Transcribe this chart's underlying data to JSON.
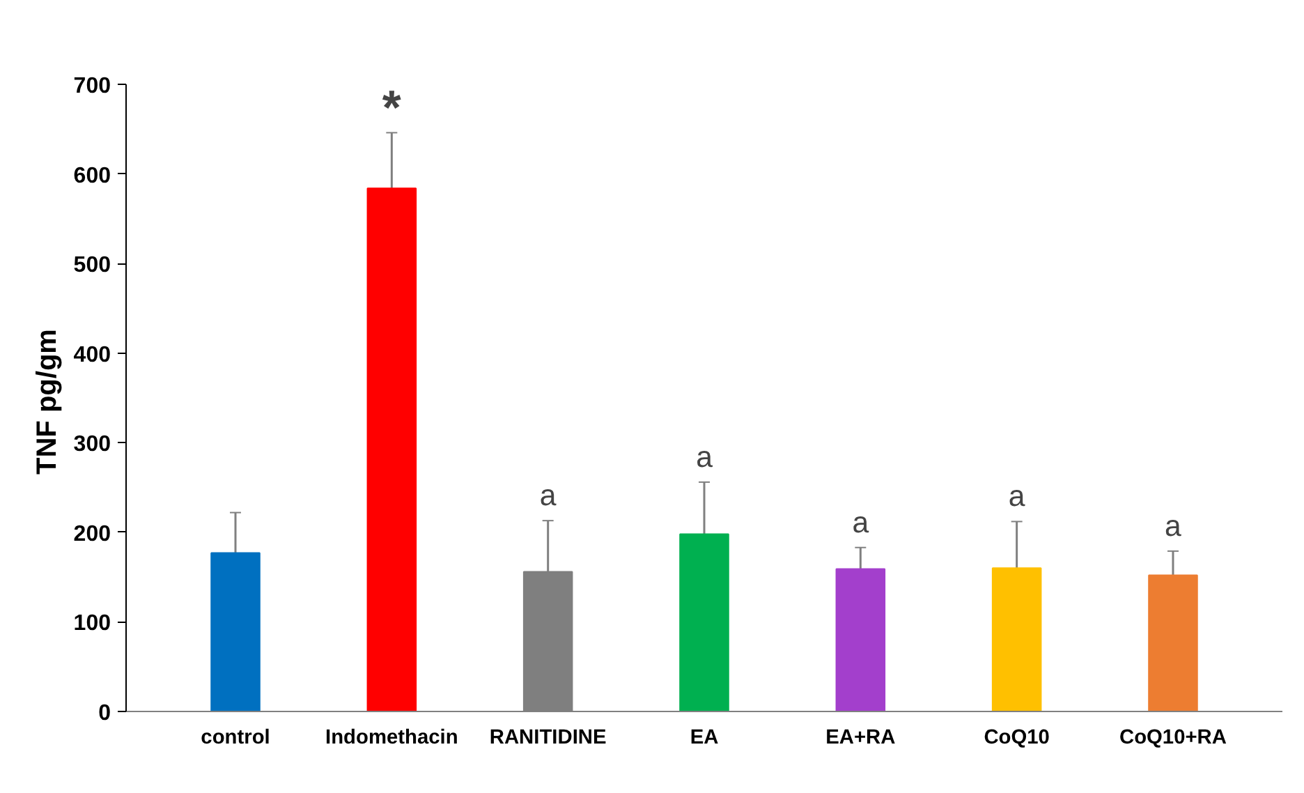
{
  "chart_data": {
    "type": "bar",
    "ylabel": "TNF  pg/gm",
    "categories": [
      "control",
      "Indomethacin",
      "RANITIDINE",
      "EA",
      "EA+RA",
      "CoQ10",
      "CoQ10+RA"
    ],
    "values": [
      177,
      584,
      156,
      198,
      159,
      160,
      152
    ],
    "colors": [
      "#0070c0",
      "#ff0000",
      "#7f7f7f",
      "#00b050",
      "#a33fcc",
      "#ffc000",
      "#ed7d31"
    ],
    "errors": [
      45,
      62,
      57,
      58,
      24,
      52,
      27
    ],
    "value_labels": [
      null,
      "*",
      "a",
      "a",
      "a",
      "a",
      "a"
    ],
    "ylim": [
      0,
      700
    ],
    "yticks": [
      0,
      100,
      200,
      300,
      400,
      500,
      600,
      700
    ],
    "grid": false
  }
}
